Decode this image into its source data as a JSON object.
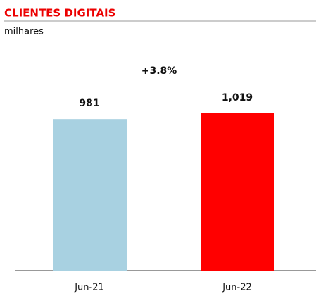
{
  "chart_data": {
    "type": "bar",
    "title": "CLIENTES DIGITAIS",
    "subtitle": "milhares",
    "annotation": "+3.8%",
    "categories": [
      "Jun-21",
      "Jun-22"
    ],
    "values": [
      981,
      1019
    ],
    "value_labels": [
      "981",
      "1,019"
    ],
    "colors": [
      "#a8d1e1",
      "#ff0000"
    ],
    "ylim": [
      0,
      1100
    ]
  }
}
